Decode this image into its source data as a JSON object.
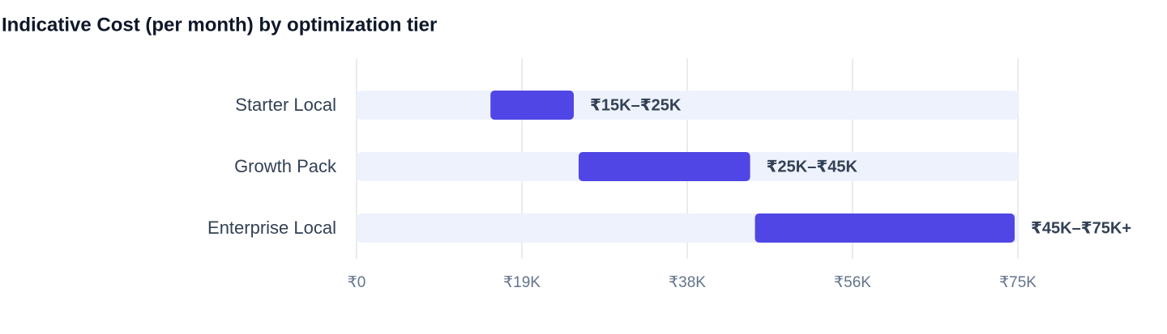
{
  "chart_data": {
    "type": "range_bar",
    "title": "Indicative Cost (per month) by optimization tier",
    "categories": [
      "Starter Local",
      "Growth Pack",
      "Enterprise Local"
    ],
    "values": [
      [
        15000,
        25000
      ],
      [
        25000,
        45000
      ],
      [
        45000,
        75000
      ]
    ],
    "value_labels": [
      "₹15K–₹25K",
      "₹25K–₹45K",
      "₹45K–₹75K+"
    ],
    "color": "#5046e5",
    "track_color": "#eef2fd",
    "xlim": [
      0,
      75000
    ],
    "xticks": [
      {
        "value": 0,
        "label": "₹0"
      },
      {
        "value": 18750,
        "label": "₹19K"
      },
      {
        "value": 37500,
        "label": "₹38K"
      },
      {
        "value": 56250,
        "label": "₹56K"
      },
      {
        "value": 75000,
        "label": "₹75K"
      }
    ],
    "grid": true
  }
}
